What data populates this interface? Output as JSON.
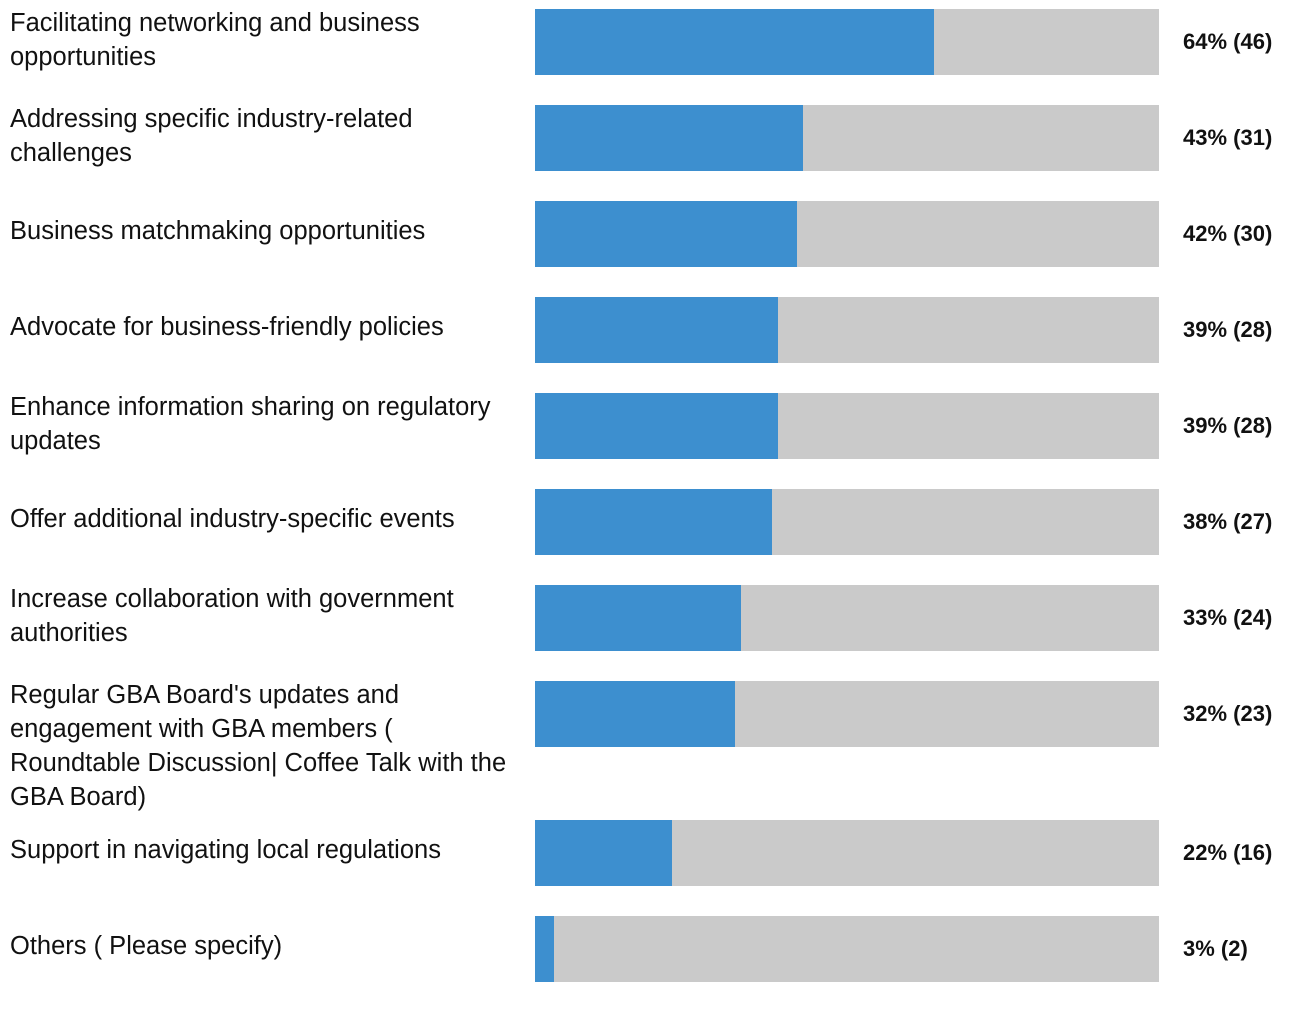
{
  "chart_data": {
    "type": "bar",
    "orientation": "horizontal",
    "categories": [
      "Facilitating networking and business opportunities",
      "Addressing specific industry-related challenges",
      "Business matchmaking opportunities",
      "Advocate for business-friendly policies",
      "Enhance information sharing on regulatory updates",
      "Offer additional industry-specific events",
      "Increase collaboration with government authorities",
      "Regular GBA Board's updates and engagement with GBA members ( Roundtable Discussion| Coffee Talk with the GBA Board)",
      "Support in navigating local regulations",
      "Others ( Please specify)"
    ],
    "values": [
      64,
      43,
      42,
      39,
      39,
      38,
      33,
      32,
      22,
      3
    ],
    "value_labels": [
      "64% (46)",
      "43% (31)",
      "42% (30)",
      "39% (28)",
      "39% (28)",
      "38% (27)",
      "33% (24)",
      "32% (23)",
      "22% (16)",
      "3% (2)"
    ],
    "xlim": [
      0,
      100
    ],
    "color": "#3d8fcf",
    "track_color": "#cacaca"
  }
}
